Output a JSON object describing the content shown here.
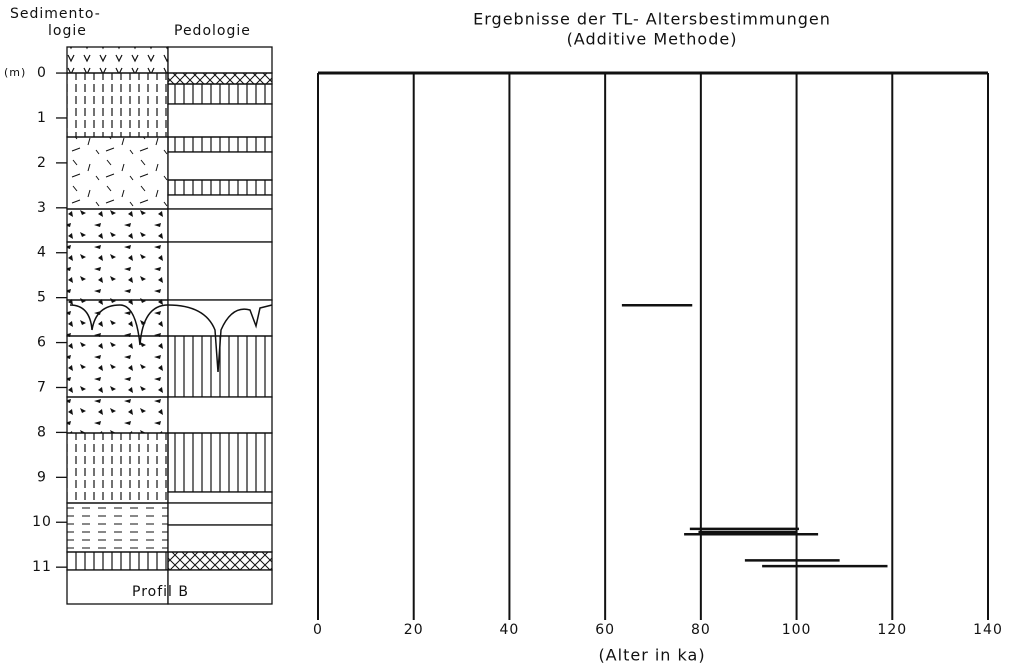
{
  "profile": {
    "heading_sediment": [
      "Sedimento-",
      "logie"
    ],
    "heading_pedology": "Pedologie",
    "unit": "(m)",
    "caption": "Profil B",
    "ylim": [
      -0.58,
      11.82
    ],
    "yticks": [
      0,
      1,
      2,
      3,
      4,
      5,
      6,
      7,
      8,
      9,
      10,
      11
    ]
  },
  "chart_data": {
    "type": "range",
    "title": "Ergebnisse der TL- Altersbestimmungen",
    "subtitle": "(Additive Methode)",
    "x_label": "(Alter in ka)",
    "xlim": [
      0,
      140
    ],
    "xticks": [
      0,
      20,
      40,
      60,
      80,
      100,
      120,
      140
    ],
    "ylim": [
      0,
      12
    ],
    "grid": true,
    "color": "#111111",
    "series": [
      {
        "depth": [
          5.17,
          10.15,
          10.22,
          10.27,
          10.85,
          10.98
        ],
        "low": [
          63.5,
          77.7,
          79.5,
          76.5,
          89.2,
          92.8
        ],
        "high": [
          78.2,
          100.5,
          100.2,
          104.5,
          109.0,
          119.0
        ]
      }
    ]
  }
}
